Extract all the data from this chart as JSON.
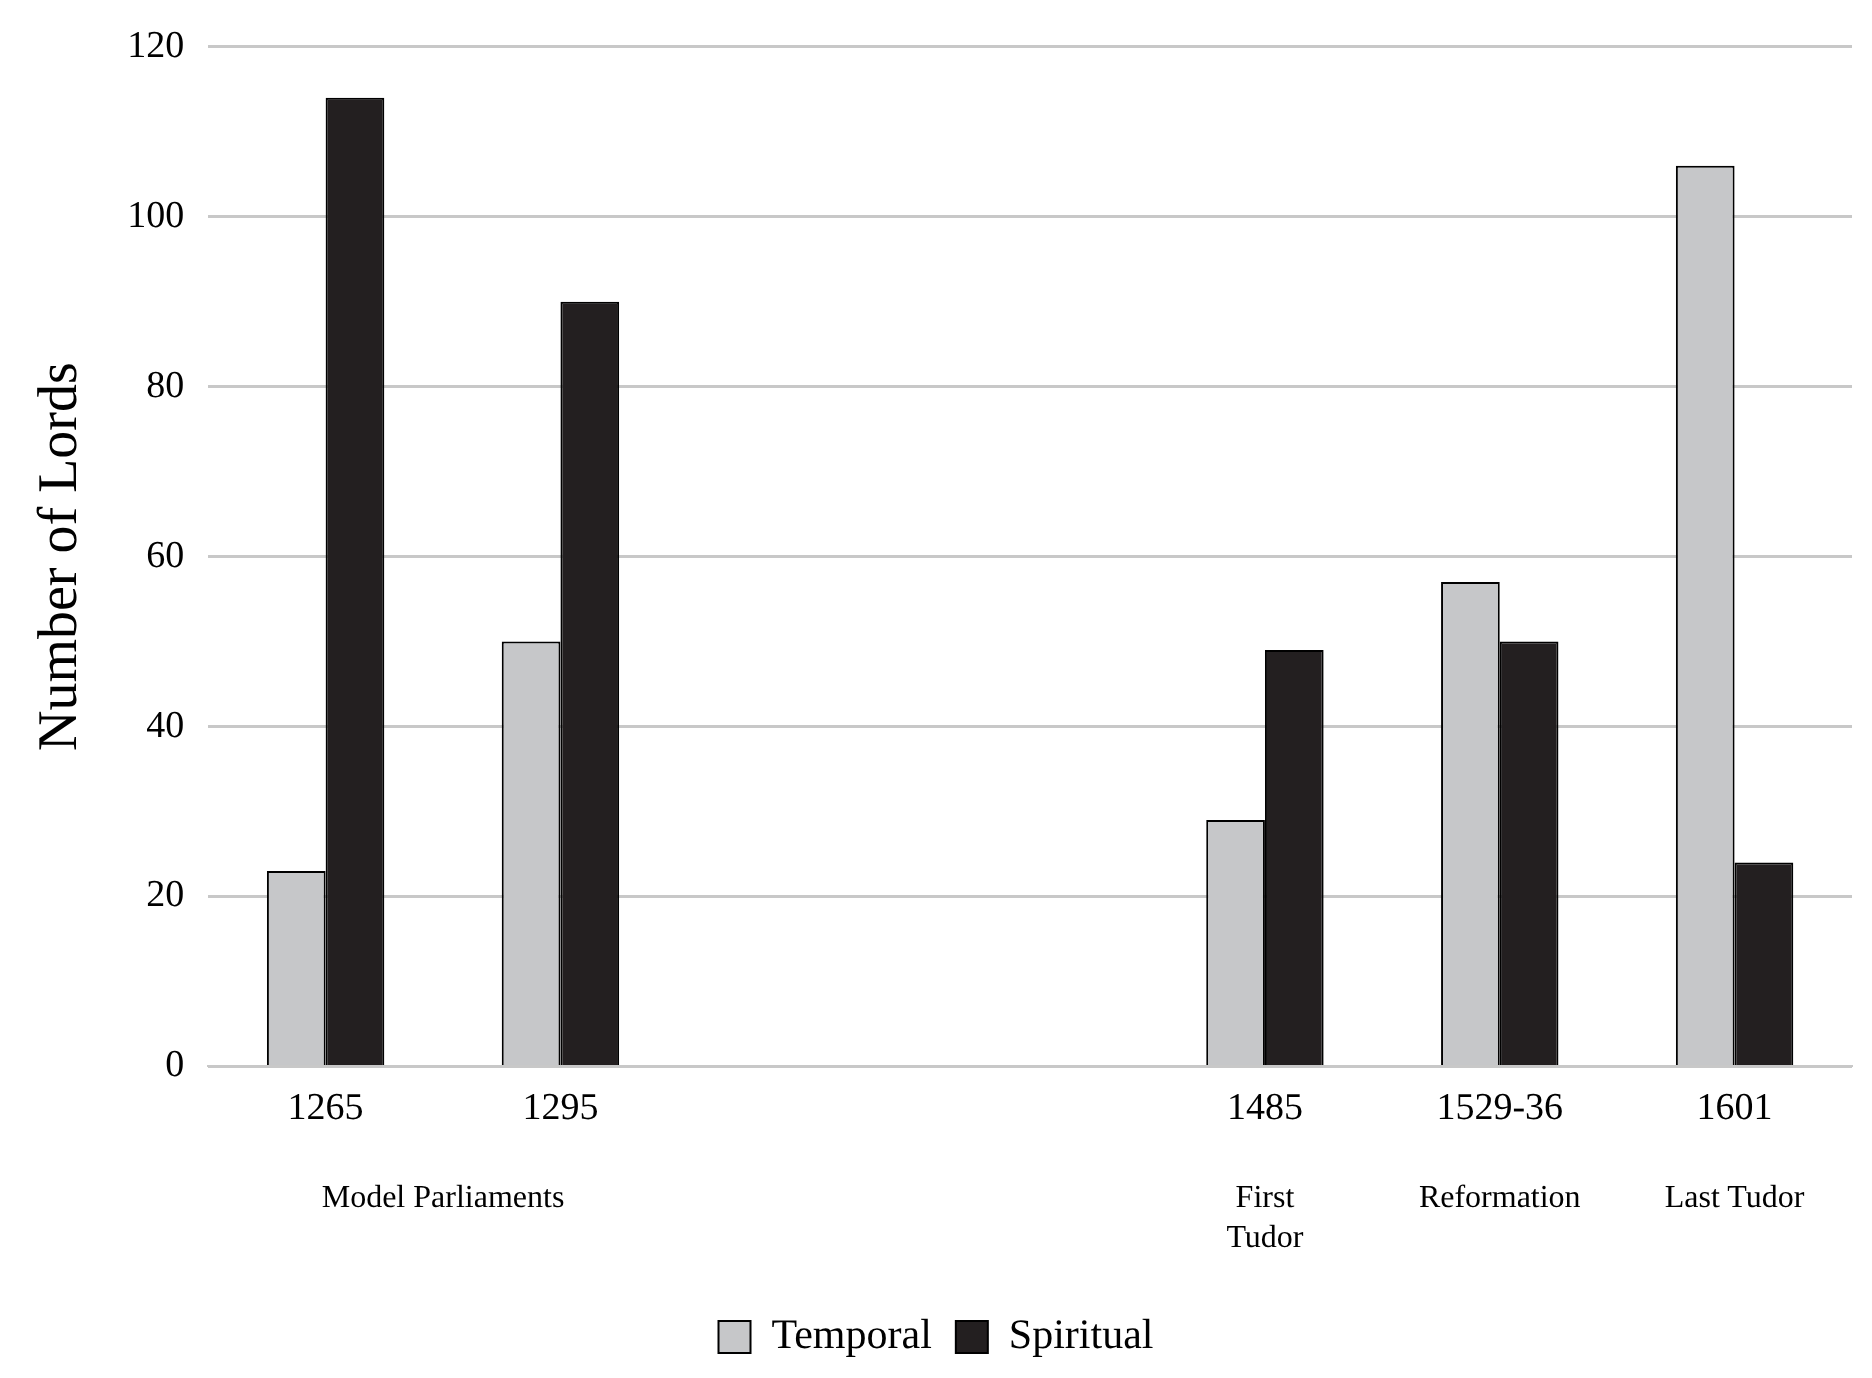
{
  "chart_data": {
    "type": "bar",
    "ylabel": "Number of Lords",
    "categories": [
      "1265",
      "1295",
      null,
      null,
      "1485",
      "1529-36",
      "1601"
    ],
    "series": [
      {
        "name": "Temporal",
        "color": "#c6c7c9",
        "values": [
          23,
          50,
          null,
          null,
          29,
          57,
          106
        ]
      },
      {
        "name": "Spiritual",
        "color": "#231f20",
        "values": [
          114,
          90,
          null,
          null,
          49,
          50,
          24
        ]
      }
    ],
    "ylim": [
      0,
      120
    ],
    "yticks": [
      0,
      20,
      40,
      60,
      80,
      100,
      120
    ],
    "grid": "y",
    "legend": "bottom",
    "annotations": [
      "Model Parliaments",
      "First Tudor",
      "Reformation",
      "Last Tudor"
    ]
  }
}
